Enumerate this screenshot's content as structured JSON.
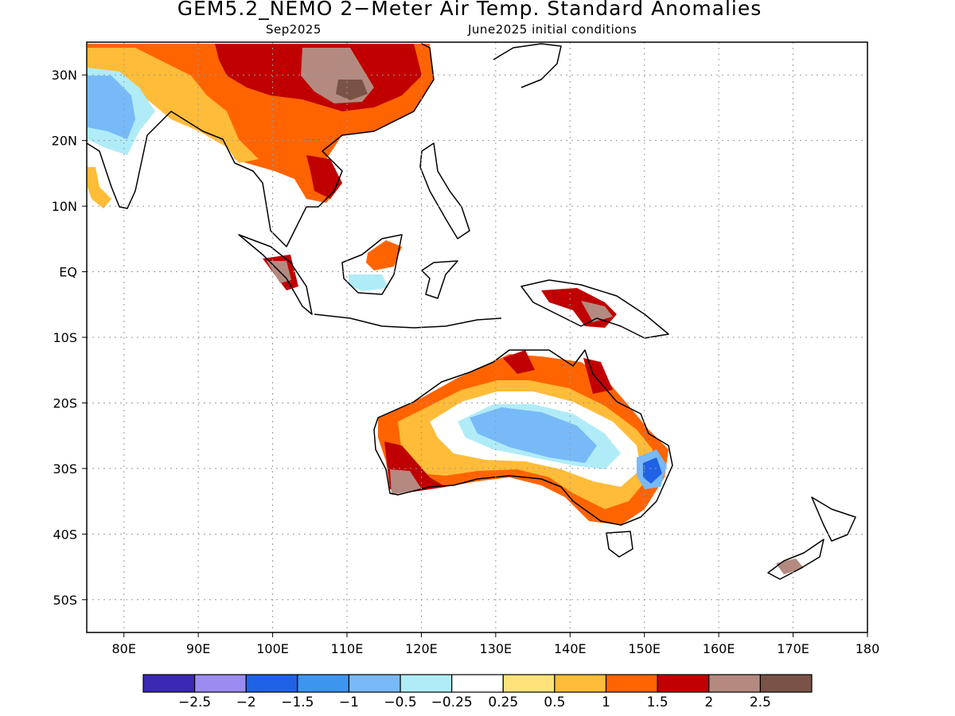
{
  "header": {
    "title": "GEM5.2_NEMO 2−Meter Air Temp. Standard Anomalies",
    "lead_month": "Sep2025",
    "initial_conditions": "June2025 initial conditions"
  },
  "map": {
    "lon_range": [
      75,
      180
    ],
    "lat_range": [
      -55,
      35
    ],
    "lat_ticks": [
      {
        "value": 30,
        "label": "30N"
      },
      {
        "value": 20,
        "label": "20N"
      },
      {
        "value": 10,
        "label": "10N"
      },
      {
        "value": 0,
        "label": "EQ"
      },
      {
        "value": -10,
        "label": "10S"
      },
      {
        "value": -20,
        "label": "20S"
      },
      {
        "value": -30,
        "label": "30S"
      },
      {
        "value": -40,
        "label": "40S"
      },
      {
        "value": -50,
        "label": "50S"
      }
    ],
    "lon_ticks": [
      {
        "value": 80,
        "label": "80E"
      },
      {
        "value": 90,
        "label": "90E"
      },
      {
        "value": 100,
        "label": "100E"
      },
      {
        "value": 110,
        "label": "110E"
      },
      {
        "value": 120,
        "label": "120E"
      },
      {
        "value": 130,
        "label": "130E"
      },
      {
        "value": 140,
        "label": "140E"
      },
      {
        "value": 150,
        "label": "150E"
      },
      {
        "value": 160,
        "label": "160E"
      },
      {
        "value": 170,
        "label": "170E"
      },
      {
        "value": 180,
        "label": "180"
      }
    ],
    "grid": "dotted"
  },
  "legend": {
    "colors": [
      "#3b28b4",
      "#9c8cf2",
      "#1f62e6",
      "#3c96f0",
      "#78b9f8",
      "#b0ecf8",
      "#ffffff",
      "#ffe27a",
      "#ffbc38",
      "#ff6400",
      "#c00000",
      "#b48a80",
      "#7a5246"
    ],
    "labels": [
      "−2.5",
      "−2",
      "−1.5",
      "−1",
      "−0.5",
      "−0.25",
      "0.25",
      "0.5",
      "1",
      "1.5",
      "2",
      "2.5"
    ]
  }
}
